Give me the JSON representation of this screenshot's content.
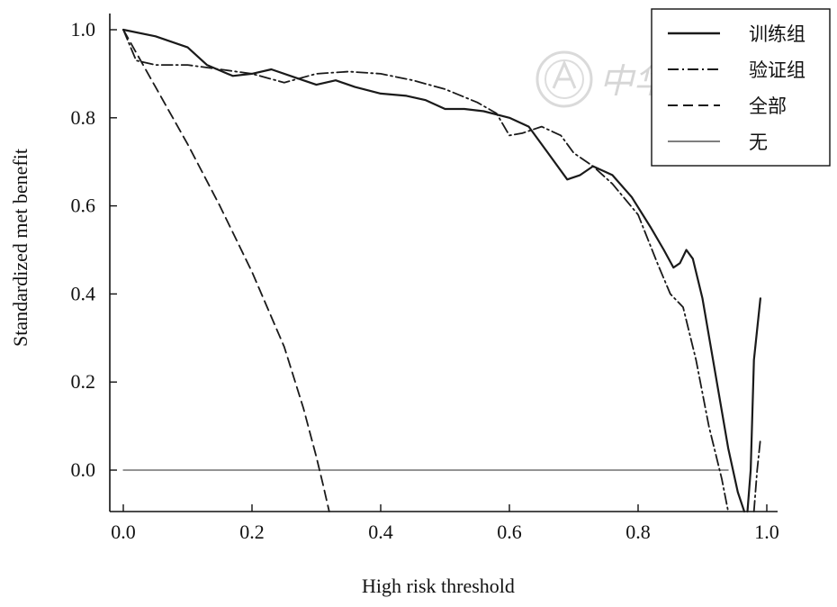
{
  "chart_data": {
    "type": "line",
    "title": "",
    "xlabel": "High risk threshold",
    "ylabel": "Standardized met benefit",
    "xlim": [
      0,
      1
    ],
    "ylim": [
      -0.1,
      1.0
    ],
    "xticks": [
      "0.0",
      "0.2",
      "0.4",
      "0.6",
      "0.8",
      "1.0"
    ],
    "yticks": [
      "0.0",
      "0.2",
      "0.4",
      "0.6",
      "0.8",
      "1.0"
    ],
    "grid": false,
    "legend_position": "top-right",
    "series": [
      {
        "name": "训练组",
        "style": "solid-thick",
        "color": "#1a1a1a",
        "segments": [
          [
            [
              0.0,
              1.0
            ],
            [
              0.05,
              0.985
            ],
            [
              0.1,
              0.96
            ],
            [
              0.13,
              0.92
            ],
            [
              0.17,
              0.895
            ],
            [
              0.2,
              0.9
            ],
            [
              0.23,
              0.91
            ],
            [
              0.27,
              0.89
            ],
            [
              0.3,
              0.875
            ],
            [
              0.33,
              0.885
            ],
            [
              0.36,
              0.87
            ],
            [
              0.4,
              0.855
            ],
            [
              0.44,
              0.85
            ],
            [
              0.47,
              0.84
            ],
            [
              0.5,
              0.82
            ],
            [
              0.53,
              0.82
            ],
            [
              0.56,
              0.815
            ],
            [
              0.6,
              0.8
            ],
            [
              0.63,
              0.78
            ],
            [
              0.66,
              0.72
            ],
            [
              0.69,
              0.66
            ],
            [
              0.71,
              0.67
            ],
            [
              0.73,
              0.69
            ],
            [
              0.76,
              0.67
            ],
            [
              0.79,
              0.62
            ],
            [
              0.82,
              0.55
            ],
            [
              0.84,
              0.5
            ],
            [
              0.855,
              0.46
            ],
            [
              0.865,
              0.47
            ],
            [
              0.875,
              0.5
            ],
            [
              0.885,
              0.48
            ],
            [
              0.9,
              0.39
            ],
            [
              0.92,
              0.22
            ],
            [
              0.94,
              0.05
            ],
            [
              0.955,
              -0.05
            ],
            [
              0.965,
              -0.1
            ]
          ],
          [
            [
              0.97,
              -0.1
            ],
            [
              0.975,
              0.0
            ],
            [
              0.98,
              0.25
            ],
            [
              0.99,
              0.39
            ]
          ]
        ]
      },
      {
        "name": "验证组",
        "style": "dash-dot",
        "color": "#1a1a1a",
        "segments": [
          [
            [
              0.0,
              1.0
            ],
            [
              0.02,
              0.93
            ],
            [
              0.05,
              0.92
            ],
            [
              0.1,
              0.92
            ],
            [
              0.15,
              0.91
            ],
            [
              0.2,
              0.9
            ],
            [
              0.25,
              0.88
            ],
            [
              0.3,
              0.9
            ],
            [
              0.35,
              0.905
            ],
            [
              0.4,
              0.9
            ],
            [
              0.45,
              0.885
            ],
            [
              0.5,
              0.865
            ],
            [
              0.55,
              0.835
            ],
            [
              0.58,
              0.81
            ],
            [
              0.6,
              0.76
            ],
            [
              0.62,
              0.765
            ],
            [
              0.65,
              0.78
            ],
            [
              0.68,
              0.76
            ],
            [
              0.7,
              0.72
            ],
            [
              0.73,
              0.69
            ],
            [
              0.76,
              0.65
            ],
            [
              0.8,
              0.58
            ],
            [
              0.83,
              0.47
            ],
            [
              0.85,
              0.4
            ],
            [
              0.87,
              0.37
            ],
            [
              0.89,
              0.25
            ],
            [
              0.91,
              0.1
            ],
            [
              0.93,
              -0.02
            ],
            [
              0.94,
              -0.1
            ]
          ],
          [
            [
              0.98,
              -0.1
            ],
            [
              0.985,
              0.0
            ],
            [
              0.99,
              0.07
            ]
          ]
        ]
      },
      {
        "name": "全部",
        "style": "dashed",
        "color": "#1a1a1a",
        "segments": [
          [
            [
              0.0,
              1.0
            ],
            [
              0.05,
              0.87
            ],
            [
              0.1,
              0.74
            ],
            [
              0.15,
              0.6
            ],
            [
              0.2,
              0.45
            ],
            [
              0.25,
              0.28
            ],
            [
              0.28,
              0.14
            ],
            [
              0.3,
              0.03
            ],
            [
              0.31,
              -0.03
            ],
            [
              0.32,
              -0.1
            ]
          ]
        ]
      },
      {
        "name": "无",
        "style": "solid-thin",
        "color": "#555555",
        "segments": [
          [
            [
              0.0,
              0.0
            ],
            [
              0.94,
              0.0
            ]
          ]
        ]
      }
    ]
  },
  "watermark": {
    "seal_icon": "seal-icon",
    "text": "中华医学会"
  }
}
